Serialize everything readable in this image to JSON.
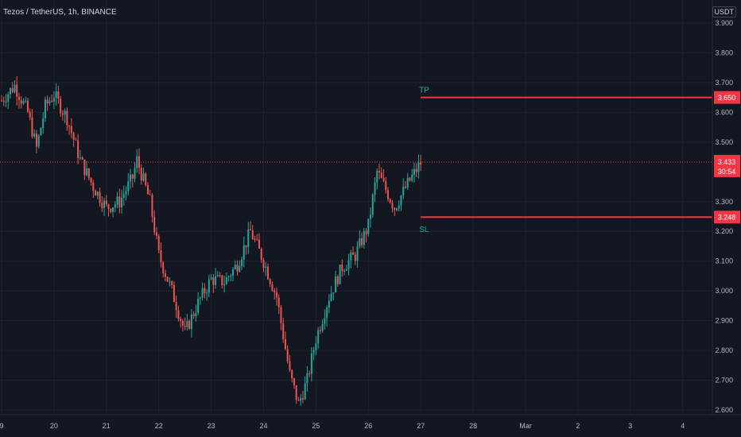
{
  "header": {
    "symbol": "Tezos / TetherUS, 1h, BINANCE"
  },
  "price_axis": {
    "unit": "USDT",
    "ticks": [
      "3.900",
      "3.800",
      "3.700",
      "3.600",
      "3.500",
      "3.300",
      "3.200",
      "3.100",
      "3.000",
      "2.900",
      "2.800",
      "2.700",
      "2.600"
    ]
  },
  "time_axis": {
    "ticks": [
      "9",
      "20",
      "21",
      "22",
      "23",
      "24",
      "25",
      "26",
      "27",
      "28",
      "Mar",
      "2",
      "3",
      "4"
    ]
  },
  "levels": {
    "tp": {
      "label": "TP",
      "price": 3.65,
      "price_label": "3.650",
      "color": "#f23645",
      "text_color": "#22ab94"
    },
    "sl": {
      "label": "SL",
      "price": 3.248,
      "price_label": "3.248",
      "color": "#f23645",
      "text_color": "#22ab94"
    }
  },
  "current": {
    "price": 3.433,
    "price_label": "3.433",
    "countdown": "30:54",
    "color": "#f23645"
  },
  "colors": {
    "up": "#26a69a",
    "down": "#ef5350",
    "background": "#131722",
    "grid": "#1e222d"
  },
  "chart_data": {
    "type": "candlestick-line",
    "title": "Tezos / TetherUS, 1h, BINANCE",
    "ylabel": "USDT",
    "ylim": [
      2.58,
      3.96
    ],
    "grid": true,
    "close_path": [
      [
        "19 00:00",
        3.64
      ],
      [
        "19 06:00",
        3.69
      ],
      [
        "19 12:00",
        3.6
      ],
      [
        "19 16:00",
        3.48
      ],
      [
        "19 20:00",
        3.62
      ],
      [
        "20 00:00",
        3.66
      ],
      [
        "20 06:00",
        3.58
      ],
      [
        "20 12:00",
        3.44
      ],
      [
        "20 18:00",
        3.35
      ],
      [
        "21 00:00",
        3.28
      ],
      [
        "21 06:00",
        3.3
      ],
      [
        "21 12:00",
        3.38
      ],
      [
        "21 14:00",
        3.44
      ],
      [
        "21 20:00",
        3.3
      ],
      [
        "22 00:00",
        3.12
      ],
      [
        "22 06:00",
        3.0
      ],
      [
        "22 12:00",
        2.86
      ],
      [
        "22 18:00",
        2.96
      ],
      [
        "23 00:00",
        3.04
      ],
      [
        "23 06:00",
        3.03
      ],
      [
        "23 12:00",
        3.09
      ],
      [
        "23 18:00",
        3.2
      ],
      [
        "24 00:00",
        3.1
      ],
      [
        "24 06:00",
        2.98
      ],
      [
        "24 12:00",
        2.72
      ],
      [
        "24 16:00",
        2.62
      ],
      [
        "24 20:00",
        2.7
      ],
      [
        "25 00:00",
        2.84
      ],
      [
        "25 06:00",
        2.98
      ],
      [
        "25 12:00",
        3.08
      ],
      [
        "25 18:00",
        3.12
      ],
      [
        "26 00:00",
        3.22
      ],
      [
        "26 04:00",
        3.4
      ],
      [
        "26 08:00",
        3.34
      ],
      [
        "26 12:00",
        3.28
      ],
      [
        "26 18:00",
        3.36
      ],
      [
        "27 00:00",
        3.43
      ]
    ]
  }
}
